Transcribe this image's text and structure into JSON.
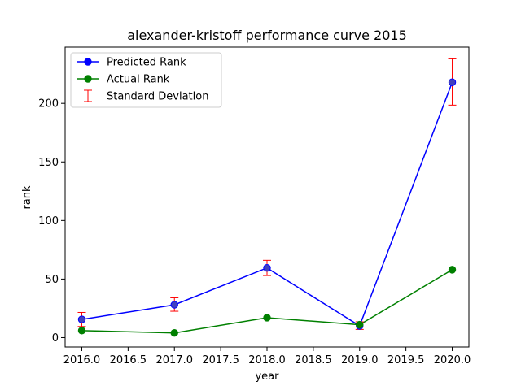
{
  "chart_data": {
    "type": "line",
    "title": "alexander-kristoff performance curve 2015",
    "xlabel": "year",
    "ylabel": "rank",
    "xlim": [
      2015.82,
      2020.18
    ],
    "ylim": [
      -8,
      248
    ],
    "x_ticks": [
      2016.0,
      2016.5,
      2017.0,
      2017.5,
      2018.0,
      2018.5,
      2019.0,
      2019.5,
      2020.0
    ],
    "x_tick_labels": [
      "2016.0",
      "2016.5",
      "2017.0",
      "2017.5",
      "2018.0",
      "2018.5",
      "2019.0",
      "2019.5",
      "2020.0"
    ],
    "y_ticks": [
      0,
      50,
      100,
      150,
      200
    ],
    "y_tick_labels": [
      "0",
      "50",
      "100",
      "150",
      "200"
    ],
    "grid": false,
    "legend_position": "top-left",
    "x": [
      2016,
      2017,
      2018,
      2019,
      2020
    ],
    "series": [
      {
        "name": "Predicted Rank",
        "color": "#0000ff",
        "marker_face": "#4040bf",
        "values": [
          15.5,
          28.0,
          59.5,
          10.0,
          218.0
        ],
        "error_low": [
          9.5,
          22.5,
          53.0,
          7.0,
          198.5
        ],
        "error_high": [
          21.5,
          34.0,
          66.0,
          13.5,
          238.0
        ]
      },
      {
        "name": "Actual Rank",
        "color": "#008000",
        "values": [
          6.0,
          4.0,
          17.0,
          11.0,
          58.0
        ]
      }
    ],
    "errorbar_label": "Standard Deviation",
    "errorbar_color": "#ff0000"
  }
}
